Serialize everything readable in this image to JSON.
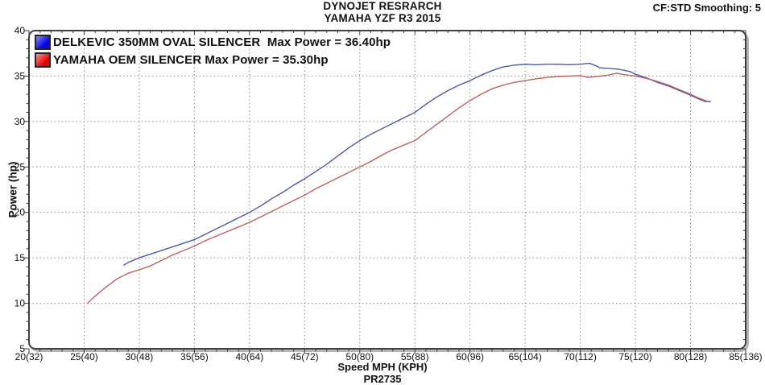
{
  "header": {
    "title_line1": "DYNOJET RESRARCH",
    "title_line2": "YAMAHA YZF R3 2015",
    "smoothing": "CF:STD Smoothing: 5"
  },
  "footer": {
    "code": "PR2735"
  },
  "chart_data": {
    "type": "line",
    "title": "DYNOJET RESRARCH - YAMAHA YZF R3 2015",
    "xlabel": "Speed MPH (KPH)",
    "ylabel": "Power (hp)",
    "xlim": [
      20,
      85
    ],
    "ylim": [
      5,
      40
    ],
    "x_major_step": 5,
    "y_major_step": 5,
    "grid": "dotted",
    "legend_position": "top-left",
    "x_tick_labels": [
      "20(32)",
      "25(40)",
      "30(48)",
      "35(56)",
      "40(64)",
      "45(72)",
      "50(80)",
      "55(88)",
      "60(96)",
      "65(104)",
      "70(112)",
      "75(120)",
      "80(128)",
      "85(136)"
    ],
    "y_ticks": [
      5,
      10,
      15,
      20,
      25,
      30,
      35,
      40
    ],
    "colors": {
      "grid": "#8b8b8b",
      "border": "#3f3f3f",
      "shadow": "#b5b5b5",
      "blue_line": "#4e59a6",
      "red_line": "#c26064",
      "swatch_blue_from": "#8a8aff",
      "swatch_blue_to": "#0000dd",
      "swatch_red_from": "#ff9494",
      "swatch_red_to": "#e60000"
    },
    "series": [
      {
        "name": "DELKEVIC 350MM OVAL SILENCER",
        "legend_label": "DELKEVIC 350MM OVAL SILENCER  Max Power = 36.40hp",
        "max_power_hp": 36.4,
        "color": "#4e59a6",
        "points": [
          [
            28.6,
            14.2
          ],
          [
            29,
            14.5
          ],
          [
            30,
            15.0
          ],
          [
            31,
            15.4
          ],
          [
            32,
            15.8
          ],
          [
            33,
            16.2
          ],
          [
            34,
            16.6
          ],
          [
            35,
            17.0
          ],
          [
            36,
            17.6
          ],
          [
            37,
            18.2
          ],
          [
            38,
            18.8
          ],
          [
            39,
            19.4
          ],
          [
            40,
            20.0
          ],
          [
            41,
            20.7
          ],
          [
            42,
            21.5
          ],
          [
            43,
            22.2
          ],
          [
            44,
            23.0
          ],
          [
            45,
            23.7
          ],
          [
            46,
            24.5
          ],
          [
            47,
            25.3
          ],
          [
            48,
            26.2
          ],
          [
            49,
            27.1
          ],
          [
            50,
            27.9
          ],
          [
            51,
            28.6
          ],
          [
            52,
            29.2
          ],
          [
            53,
            29.8
          ],
          [
            54,
            30.4
          ],
          [
            55,
            31.0
          ],
          [
            56,
            31.9
          ],
          [
            57,
            32.7
          ],
          [
            58,
            33.4
          ],
          [
            59,
            34.0
          ],
          [
            60,
            34.5
          ],
          [
            61,
            35.1
          ],
          [
            62,
            35.6
          ],
          [
            63,
            36.0
          ],
          [
            64,
            36.2
          ],
          [
            65,
            36.3
          ],
          [
            66,
            36.25
          ],
          [
            67,
            36.3
          ],
          [
            68,
            36.3
          ],
          [
            69,
            36.25
          ],
          [
            70,
            36.3
          ],
          [
            70.8,
            36.4
          ],
          [
            71.3,
            36.2
          ],
          [
            71.8,
            35.9
          ],
          [
            72.5,
            35.85
          ],
          [
            73.5,
            35.75
          ],
          [
            74.5,
            35.5
          ],
          [
            75,
            35.2
          ],
          [
            76,
            34.8
          ],
          [
            77,
            34.3
          ],
          [
            78,
            33.9
          ],
          [
            79,
            33.4
          ],
          [
            80,
            32.9
          ],
          [
            80.7,
            32.5
          ],
          [
            81.3,
            32.2
          ],
          [
            81.8,
            32.2
          ]
        ]
      },
      {
        "name": "YAMAHA OEM SILENCER",
        "legend_label": "YAMAHA OEM SILENCER Max Power = 35.30hp",
        "max_power_hp": 35.3,
        "color": "#c26064",
        "points": [
          [
            25.3,
            10.0
          ],
          [
            26,
            10.8
          ],
          [
            27,
            11.8
          ],
          [
            28,
            12.7
          ],
          [
            29,
            13.3
          ],
          [
            30,
            13.7
          ],
          [
            31,
            14.1
          ],
          [
            32,
            14.7
          ],
          [
            33,
            15.3
          ],
          [
            34,
            15.8
          ],
          [
            35,
            16.3
          ],
          [
            36,
            16.9
          ],
          [
            37,
            17.4
          ],
          [
            38,
            17.9
          ],
          [
            39,
            18.4
          ],
          [
            40,
            18.9
          ],
          [
            41,
            19.5
          ],
          [
            42,
            20.1
          ],
          [
            43,
            20.7
          ],
          [
            44,
            21.3
          ],
          [
            45,
            21.9
          ],
          [
            46,
            22.6
          ],
          [
            47,
            23.2
          ],
          [
            48,
            23.8
          ],
          [
            49,
            24.4
          ],
          [
            50,
            25.0
          ],
          [
            51,
            25.6
          ],
          [
            52,
            26.3
          ],
          [
            53,
            26.9
          ],
          [
            54,
            27.4
          ],
          [
            55,
            27.9
          ],
          [
            56,
            28.8
          ],
          [
            57,
            29.7
          ],
          [
            58,
            30.6
          ],
          [
            59,
            31.5
          ],
          [
            60,
            32.3
          ],
          [
            61,
            33.0
          ],
          [
            62,
            33.6
          ],
          [
            63,
            34.0
          ],
          [
            64,
            34.3
          ],
          [
            65,
            34.5
          ],
          [
            66,
            34.7
          ],
          [
            67,
            34.85
          ],
          [
            68,
            34.95
          ],
          [
            69,
            35.0
          ],
          [
            70,
            35.05
          ],
          [
            70.7,
            34.85
          ],
          [
            71.5,
            34.95
          ],
          [
            72.5,
            35.1
          ],
          [
            73.3,
            35.3
          ],
          [
            74,
            35.15
          ],
          [
            75,
            35.0
          ],
          [
            76,
            34.75
          ],
          [
            77,
            34.4
          ],
          [
            78,
            34.0
          ],
          [
            79,
            33.5
          ],
          [
            80,
            33.0
          ],
          [
            80.7,
            32.6
          ],
          [
            81.4,
            32.3
          ]
        ]
      }
    ]
  }
}
